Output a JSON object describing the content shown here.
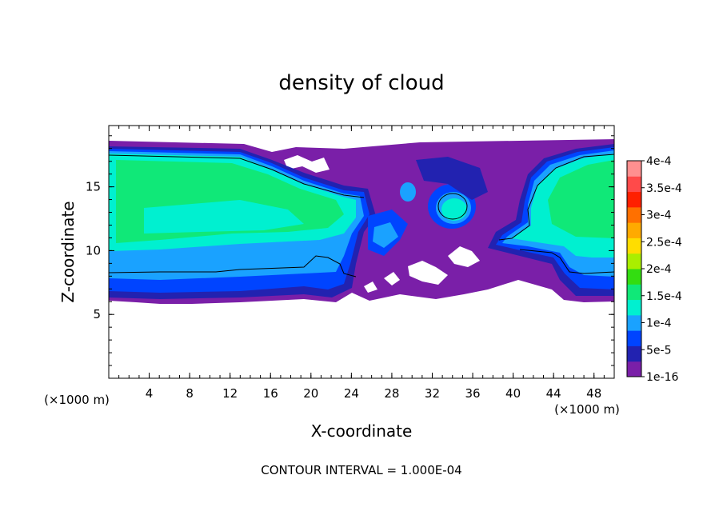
{
  "chart_data": {
    "type": "heatmap",
    "title": "density of cloud",
    "xlabel": "X-coordinate",
    "ylabel": "Z-coordinate",
    "x_unit": "(×1000 m)",
    "y_unit": "(×1000 m)",
    "xlim": [
      0,
      50
    ],
    "ylim": [
      0,
      19.8
    ],
    "x_ticks": [
      4,
      8,
      12,
      16,
      20,
      24,
      28,
      32,
      36,
      40,
      44,
      48
    ],
    "y_ticks": [
      5,
      10,
      15
    ],
    "footer": "CONTOUR INTERVAL = 1.000E-04",
    "colorbar": {
      "labels": [
        "1e-16",
        "5e-5",
        "1e-4",
        "1.5e-4",
        "2e-4",
        "2.5e-4",
        "3e-4",
        "3.5e-4",
        "4e-4"
      ],
      "colors": [
        "#7a1fa8",
        "#2222b0",
        "#0044ff",
        "#1aa2ff",
        "#00f0d0",
        "#10e878",
        "#33dd11",
        "#aaee00",
        "#ffdd00",
        "#ffaa00",
        "#ff7000",
        "#ff2000",
        "#ff4a4a",
        "#ff9090"
      ]
    },
    "regions": {
      "cloud_band_z_range": [
        6,
        18.5
      ],
      "cloud_free_gap_x_range": [
        24,
        40
      ],
      "left_core_value": "1.5e-4",
      "right_core_value": "1.5e-4",
      "edge_value": "1e-16"
    }
  }
}
